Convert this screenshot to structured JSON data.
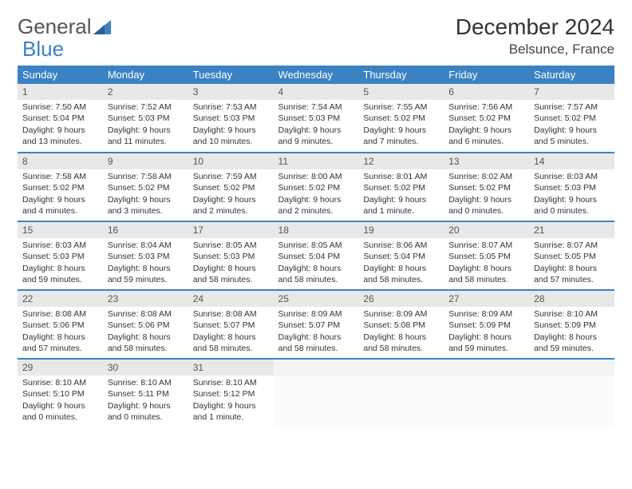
{
  "logo": {
    "text1": "General",
    "text2": "Blue"
  },
  "title": "December 2024",
  "location": "Belsunce, France",
  "colors": {
    "header_bg": "#3b82c4",
    "header_text": "#ffffff",
    "daynum_bg": "#e8e8e8",
    "border": "#3b82c4",
    "text": "#333333",
    "logo_gray": "#555555",
    "logo_blue": "#3b82c4"
  },
  "day_names": [
    "Sunday",
    "Monday",
    "Tuesday",
    "Wednesday",
    "Thursday",
    "Friday",
    "Saturday"
  ],
  "weeks": [
    [
      {
        "n": "1",
        "sr": "Sunrise: 7:50 AM",
        "ss": "Sunset: 5:04 PM",
        "dl": "Daylight: 9 hours and 13 minutes."
      },
      {
        "n": "2",
        "sr": "Sunrise: 7:52 AM",
        "ss": "Sunset: 5:03 PM",
        "dl": "Daylight: 9 hours and 11 minutes."
      },
      {
        "n": "3",
        "sr": "Sunrise: 7:53 AM",
        "ss": "Sunset: 5:03 PM",
        "dl": "Daylight: 9 hours and 10 minutes."
      },
      {
        "n": "4",
        "sr": "Sunrise: 7:54 AM",
        "ss": "Sunset: 5:03 PM",
        "dl": "Daylight: 9 hours and 9 minutes."
      },
      {
        "n": "5",
        "sr": "Sunrise: 7:55 AM",
        "ss": "Sunset: 5:02 PM",
        "dl": "Daylight: 9 hours and 7 minutes."
      },
      {
        "n": "6",
        "sr": "Sunrise: 7:56 AM",
        "ss": "Sunset: 5:02 PM",
        "dl": "Daylight: 9 hours and 6 minutes."
      },
      {
        "n": "7",
        "sr": "Sunrise: 7:57 AM",
        "ss": "Sunset: 5:02 PM",
        "dl": "Daylight: 9 hours and 5 minutes."
      }
    ],
    [
      {
        "n": "8",
        "sr": "Sunrise: 7:58 AM",
        "ss": "Sunset: 5:02 PM",
        "dl": "Daylight: 9 hours and 4 minutes."
      },
      {
        "n": "9",
        "sr": "Sunrise: 7:58 AM",
        "ss": "Sunset: 5:02 PM",
        "dl": "Daylight: 9 hours and 3 minutes."
      },
      {
        "n": "10",
        "sr": "Sunrise: 7:59 AM",
        "ss": "Sunset: 5:02 PM",
        "dl": "Daylight: 9 hours and 2 minutes."
      },
      {
        "n": "11",
        "sr": "Sunrise: 8:00 AM",
        "ss": "Sunset: 5:02 PM",
        "dl": "Daylight: 9 hours and 2 minutes."
      },
      {
        "n": "12",
        "sr": "Sunrise: 8:01 AM",
        "ss": "Sunset: 5:02 PM",
        "dl": "Daylight: 9 hours and 1 minute."
      },
      {
        "n": "13",
        "sr": "Sunrise: 8:02 AM",
        "ss": "Sunset: 5:02 PM",
        "dl": "Daylight: 9 hours and 0 minutes."
      },
      {
        "n": "14",
        "sr": "Sunrise: 8:03 AM",
        "ss": "Sunset: 5:03 PM",
        "dl": "Daylight: 9 hours and 0 minutes."
      }
    ],
    [
      {
        "n": "15",
        "sr": "Sunrise: 8:03 AM",
        "ss": "Sunset: 5:03 PM",
        "dl": "Daylight: 8 hours and 59 minutes."
      },
      {
        "n": "16",
        "sr": "Sunrise: 8:04 AM",
        "ss": "Sunset: 5:03 PM",
        "dl": "Daylight: 8 hours and 59 minutes."
      },
      {
        "n": "17",
        "sr": "Sunrise: 8:05 AM",
        "ss": "Sunset: 5:03 PM",
        "dl": "Daylight: 8 hours and 58 minutes."
      },
      {
        "n": "18",
        "sr": "Sunrise: 8:05 AM",
        "ss": "Sunset: 5:04 PM",
        "dl": "Daylight: 8 hours and 58 minutes."
      },
      {
        "n": "19",
        "sr": "Sunrise: 8:06 AM",
        "ss": "Sunset: 5:04 PM",
        "dl": "Daylight: 8 hours and 58 minutes."
      },
      {
        "n": "20",
        "sr": "Sunrise: 8:07 AM",
        "ss": "Sunset: 5:05 PM",
        "dl": "Daylight: 8 hours and 58 minutes."
      },
      {
        "n": "21",
        "sr": "Sunrise: 8:07 AM",
        "ss": "Sunset: 5:05 PM",
        "dl": "Daylight: 8 hours and 57 minutes."
      }
    ],
    [
      {
        "n": "22",
        "sr": "Sunrise: 8:08 AM",
        "ss": "Sunset: 5:06 PM",
        "dl": "Daylight: 8 hours and 57 minutes."
      },
      {
        "n": "23",
        "sr": "Sunrise: 8:08 AM",
        "ss": "Sunset: 5:06 PM",
        "dl": "Daylight: 8 hours and 58 minutes."
      },
      {
        "n": "24",
        "sr": "Sunrise: 8:08 AM",
        "ss": "Sunset: 5:07 PM",
        "dl": "Daylight: 8 hours and 58 minutes."
      },
      {
        "n": "25",
        "sr": "Sunrise: 8:09 AM",
        "ss": "Sunset: 5:07 PM",
        "dl": "Daylight: 8 hours and 58 minutes."
      },
      {
        "n": "26",
        "sr": "Sunrise: 8:09 AM",
        "ss": "Sunset: 5:08 PM",
        "dl": "Daylight: 8 hours and 58 minutes."
      },
      {
        "n": "27",
        "sr": "Sunrise: 8:09 AM",
        "ss": "Sunset: 5:09 PM",
        "dl": "Daylight: 8 hours and 59 minutes."
      },
      {
        "n": "28",
        "sr": "Sunrise: 8:10 AM",
        "ss": "Sunset: 5:09 PM",
        "dl": "Daylight: 8 hours and 59 minutes."
      }
    ],
    [
      {
        "n": "29",
        "sr": "Sunrise: 8:10 AM",
        "ss": "Sunset: 5:10 PM",
        "dl": "Daylight: 9 hours and 0 minutes."
      },
      {
        "n": "30",
        "sr": "Sunrise: 8:10 AM",
        "ss": "Sunset: 5:11 PM",
        "dl": "Daylight: 9 hours and 0 minutes."
      },
      {
        "n": "31",
        "sr": "Sunrise: 8:10 AM",
        "ss": "Sunset: 5:12 PM",
        "dl": "Daylight: 9 hours and 1 minute."
      },
      {
        "empty": true
      },
      {
        "empty": true
      },
      {
        "empty": true
      },
      {
        "empty": true
      }
    ]
  ]
}
